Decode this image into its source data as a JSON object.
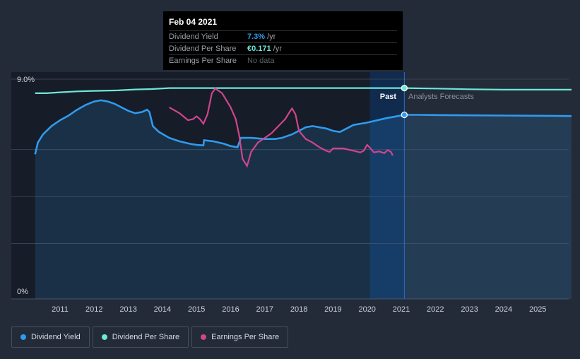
{
  "tooltip": {
    "date": "Feb 04 2021",
    "rows": [
      {
        "label": "Dividend Yield",
        "value": "7.3%",
        "unit": "/yr",
        "color": "#2f9bed"
      },
      {
        "label": "Dividend Per Share",
        "value": "€0.171",
        "unit": "/yr",
        "color": "#6de8d6"
      },
      {
        "label": "Earnings Per Share",
        "value": "No data"
      }
    ]
  },
  "legend": [
    {
      "label": "Dividend Yield",
      "color": "#2f9bed"
    },
    {
      "label": "Dividend Per Share",
      "color": "#6de8d6"
    },
    {
      "label": "Earnings Per Share",
      "color": "#d0458c"
    }
  ],
  "chart_data": {
    "type": "line",
    "y_tick_labels": [
      "9.0%",
      "0%"
    ],
    "ylim": [
      0,
      9.0
    ],
    "xlim": [
      2010.25,
      2026.0
    ],
    "x_tick_labels": [
      "2011",
      "2012",
      "2013",
      "2014",
      "2015",
      "2016",
      "2017",
      "2018",
      "2019",
      "2020",
      "2021",
      "2022",
      "2023",
      "2024",
      "2025"
    ],
    "past_label": "Past",
    "forecast_label": "Analysts Forecasts",
    "marker_x": 2021.09,
    "grid": true,
    "colors": {
      "yield": "#2f9bed",
      "dps": "#6de8d6",
      "eps": "#d0458c",
      "background": "#232a38",
      "past_shade": "#161c28",
      "hover_band": "#10305c",
      "grid": "#394252",
      "axis_text": "#d0d4da",
      "forecast_text": "#8a919c"
    },
    "series": [
      {
        "name": "Dividend Yield",
        "key": "yield",
        "fill": true,
        "points": [
          [
            2010.27,
            5.8
          ],
          [
            2010.35,
            6.3
          ],
          [
            2010.5,
            6.65
          ],
          [
            2010.75,
            7.0
          ],
          [
            2011.0,
            7.25
          ],
          [
            2011.25,
            7.45
          ],
          [
            2011.5,
            7.7
          ],
          [
            2011.75,
            7.9
          ],
          [
            2012.0,
            8.05
          ],
          [
            2012.2,
            8.1
          ],
          [
            2012.4,
            8.05
          ],
          [
            2012.6,
            7.95
          ],
          [
            2012.8,
            7.8
          ],
          [
            2013.0,
            7.65
          ],
          [
            2013.2,
            7.55
          ],
          [
            2013.4,
            7.6
          ],
          [
            2013.55,
            7.7
          ],
          [
            2013.62,
            7.6
          ],
          [
            2013.72,
            7.0
          ],
          [
            2013.9,
            6.75
          ],
          [
            2014.2,
            6.5
          ],
          [
            2014.5,
            6.35
          ],
          [
            2014.8,
            6.25
          ],
          [
            2015.0,
            6.2
          ],
          [
            2015.2,
            6.18
          ],
          [
            2015.22,
            6.4
          ],
          [
            2015.5,
            6.35
          ],
          [
            2015.8,
            6.25
          ],
          [
            2016.0,
            6.15
          ],
          [
            2016.2,
            6.1
          ],
          [
            2016.3,
            6.5
          ],
          [
            2016.6,
            6.5
          ],
          [
            2017.0,
            6.45
          ],
          [
            2017.3,
            6.45
          ],
          [
            2017.5,
            6.5
          ],
          [
            2017.8,
            6.65
          ],
          [
            2018.0,
            6.8
          ],
          [
            2018.2,
            6.95
          ],
          [
            2018.4,
            7.0
          ],
          [
            2018.6,
            6.95
          ],
          [
            2018.8,
            6.9
          ],
          [
            2019.0,
            6.8
          ],
          [
            2019.2,
            6.75
          ],
          [
            2019.4,
            6.9
          ],
          [
            2019.6,
            7.05
          ],
          [
            2019.8,
            7.1
          ],
          [
            2020.0,
            7.15
          ],
          [
            2020.3,
            7.25
          ],
          [
            2020.6,
            7.35
          ],
          [
            2020.8,
            7.4
          ],
          [
            2021.09,
            7.48
          ],
          [
            2021.5,
            7.48
          ],
          [
            2022.0,
            7.47
          ],
          [
            2023.0,
            7.46
          ],
          [
            2024.0,
            7.45
          ],
          [
            2025.0,
            7.44
          ],
          [
            2025.99,
            7.43
          ]
        ]
      },
      {
        "name": "Dividend Per Share",
        "key": "dps",
        "points": [
          [
            2010.27,
            8.4
          ],
          [
            2010.6,
            8.4
          ],
          [
            2011.0,
            8.44
          ],
          [
            2011.5,
            8.48
          ],
          [
            2012.0,
            8.5
          ],
          [
            2012.7,
            8.52
          ],
          [
            2013.2,
            8.56
          ],
          [
            2013.7,
            8.58
          ],
          [
            2014.2,
            8.62
          ],
          [
            2015.0,
            8.62
          ],
          [
            2016.0,
            8.62
          ],
          [
            2018.0,
            8.62
          ],
          [
            2020.0,
            8.62
          ],
          [
            2021.09,
            8.62
          ],
          [
            2022.0,
            8.6
          ],
          [
            2023.0,
            8.57
          ],
          [
            2024.0,
            8.55
          ],
          [
            2025.99,
            8.55
          ]
        ]
      },
      {
        "name": "Earnings Per Share",
        "key": "eps",
        "points": [
          [
            2014.2,
            7.8
          ],
          [
            2014.5,
            7.55
          ],
          [
            2014.75,
            7.25
          ],
          [
            2014.9,
            7.3
          ],
          [
            2015.0,
            7.42
          ],
          [
            2015.1,
            7.3
          ],
          [
            2015.2,
            7.1
          ],
          [
            2015.32,
            7.5
          ],
          [
            2015.45,
            8.4
          ],
          [
            2015.55,
            8.6
          ],
          [
            2015.75,
            8.4
          ],
          [
            2016.0,
            7.8
          ],
          [
            2016.15,
            7.3
          ],
          [
            2016.25,
            6.6
          ],
          [
            2016.35,
            5.6
          ],
          [
            2016.48,
            5.3
          ],
          [
            2016.6,
            5.9
          ],
          [
            2016.8,
            6.3
          ],
          [
            2017.0,
            6.5
          ],
          [
            2017.2,
            6.7
          ],
          [
            2017.4,
            7.0
          ],
          [
            2017.6,
            7.3
          ],
          [
            2017.75,
            7.65
          ],
          [
            2017.8,
            7.75
          ],
          [
            2017.9,
            7.5
          ],
          [
            2018.0,
            6.8
          ],
          [
            2018.2,
            6.45
          ],
          [
            2018.4,
            6.3
          ],
          [
            2018.6,
            6.1
          ],
          [
            2018.8,
            5.95
          ],
          [
            2018.9,
            5.9
          ],
          [
            2019.0,
            6.05
          ],
          [
            2019.3,
            6.05
          ],
          [
            2019.6,
            5.95
          ],
          [
            2019.8,
            5.88
          ],
          [
            2019.9,
            5.95
          ],
          [
            2020.0,
            6.2
          ],
          [
            2020.1,
            6.05
          ],
          [
            2020.2,
            5.88
          ],
          [
            2020.35,
            5.92
          ],
          [
            2020.5,
            5.85
          ],
          [
            2020.6,
            5.98
          ],
          [
            2020.7,
            5.9
          ],
          [
            2020.75,
            5.75
          ]
        ]
      }
    ]
  }
}
